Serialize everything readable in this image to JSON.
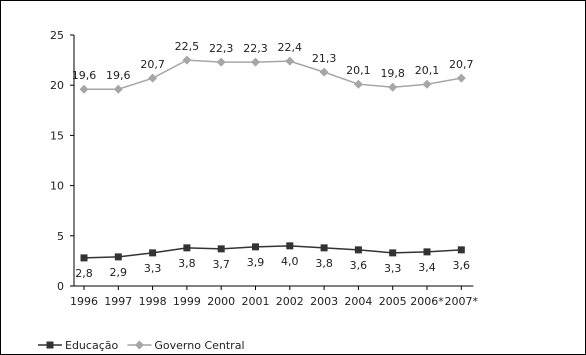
{
  "chart_data": {
    "type": "line",
    "title": "",
    "xlabel": "",
    "ylabel": "",
    "categories": [
      "1996",
      "1997",
      "1998",
      "1999",
      "2000",
      "2001",
      "2002",
      "2003",
      "2004",
      "2005",
      "2006*",
      "2007*"
    ],
    "ylim": [
      0,
      25
    ],
    "yticks": [
      "0",
      "5",
      "10",
      "15",
      "20",
      "25"
    ],
    "grid": false,
    "legend_position": "bottom-left",
    "series": [
      {
        "name": "Educação",
        "values": [
          2.8,
          2.9,
          3.3,
          3.8,
          3.7,
          3.9,
          4.0,
          3.8,
          3.6,
          3.3,
          3.4,
          3.6
        ],
        "labels": [
          "2,8",
          "2,9",
          "3,3",
          "3,8",
          "3,7",
          "3,9",
          "4,0",
          "3,8",
          "3,6",
          "3,3",
          "3,4",
          "3,6"
        ],
        "label_position": "below",
        "color": "#333333",
        "marker": "square"
      },
      {
        "name": "Governo Central",
        "values": [
          19.6,
          19.6,
          20.7,
          22.5,
          22.3,
          22.3,
          22.4,
          21.3,
          20.1,
          19.8,
          20.1,
          20.7
        ],
        "labels": [
          "19,6",
          "19,6",
          "20,7",
          "22,5",
          "22,3",
          "22,3",
          "22,4",
          "21,3",
          "20,1",
          "19,8",
          "20,1",
          "20,7"
        ],
        "label_position": "above",
        "color": "#a6a6a6",
        "marker": "diamond"
      }
    ]
  }
}
